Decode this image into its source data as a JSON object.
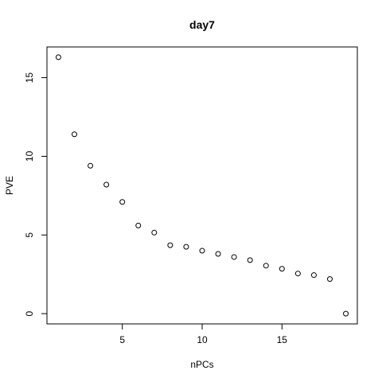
{
  "chart_data": {
    "type": "scatter",
    "title": "day7",
    "xlabel": "nPCs",
    "ylabel": "PVE",
    "x": [
      1,
      2,
      3,
      4,
      5,
      6,
      7,
      8,
      9,
      10,
      11,
      12,
      13,
      14,
      15,
      16,
      17,
      18,
      19
    ],
    "y": [
      16.3,
      11.4,
      9.4,
      8.2,
      7.1,
      5.6,
      5.15,
      4.35,
      4.25,
      4.0,
      3.8,
      3.6,
      3.4,
      3.05,
      2.85,
      2.55,
      2.45,
      2.2,
      0.0
    ],
    "xlim": [
      0.28,
      19.72
    ],
    "ylim": [
      -0.652,
      16.952
    ],
    "xticks": [
      5,
      10,
      15
    ],
    "yticks": [
      0,
      5,
      10,
      15
    ],
    "marker": "open-circle",
    "grid": false,
    "legend": "none"
  }
}
